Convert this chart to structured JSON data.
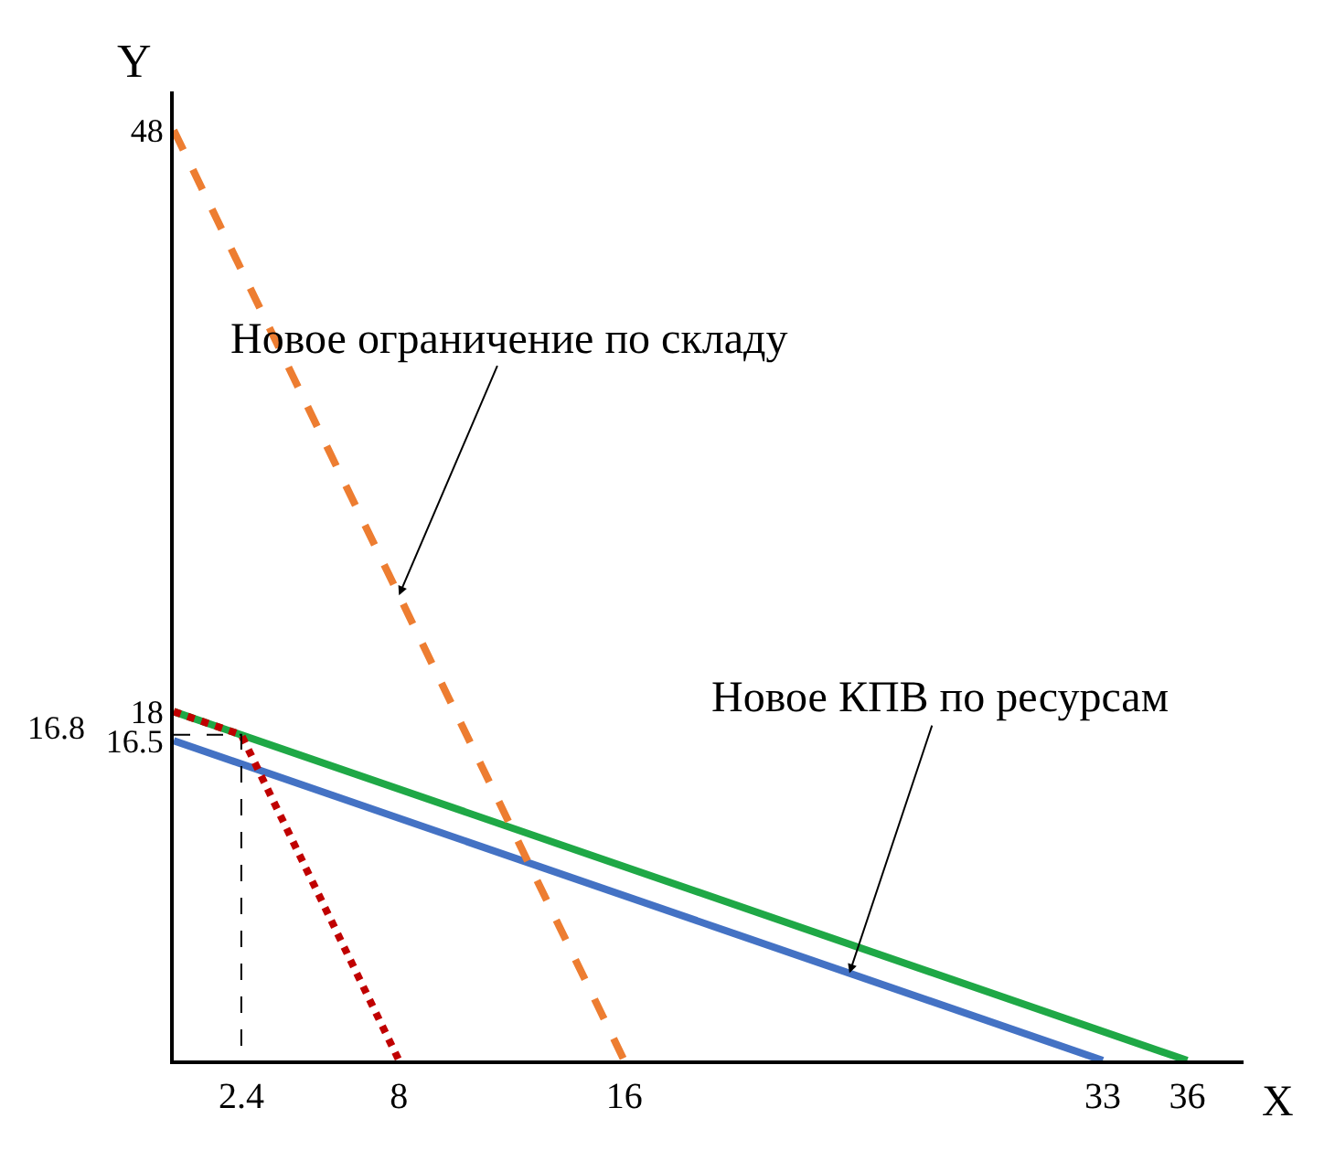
{
  "chart_data": {
    "type": "line",
    "xlabel": "X",
    "ylabel": "Y",
    "xlim": [
      0,
      38
    ],
    "ylim": [
      0,
      50
    ],
    "xticks": [
      2.4,
      8,
      16,
      33,
      36
    ],
    "yticks": [
      16.5,
      18,
      48
    ],
    "marker": "none",
    "series": [
      {
        "color": "#1fa846",
        "x": [
          0,
          36
        ],
        "values": [
          18,
          0
        ],
        "line_style": "solid"
      },
      {
        "color": "#4472c4",
        "x": [
          0,
          33
        ],
        "values": [
          16.5,
          0
        ],
        "line_style": "solid"
      },
      {
        "color": "#ed7d31",
        "x": [
          0,
          16
        ],
        "values": [
          48,
          0
        ],
        "line_style": "dashed"
      },
      {
        "color": "#c00000",
        "x": [
          0,
          2.4,
          8
        ],
        "values": [
          18,
          16.8,
          0
        ],
        "line_style": "dotted"
      },
      {
        "color": "#000000",
        "x": [
          0,
          2.4,
          2.4
        ],
        "values": [
          16.8,
          16.8,
          0
        ],
        "line_style": "dashed"
      }
    ],
    "annotations": [
      {
        "text": "Новое ограничение по складу",
        "x": 8,
        "y": 24
      },
      {
        "text": "Новое КПВ по ресурсам",
        "x": 24,
        "y": 4.5
      },
      {
        "text": "16.8",
        "x": 0,
        "y": 16.8
      }
    ]
  }
}
